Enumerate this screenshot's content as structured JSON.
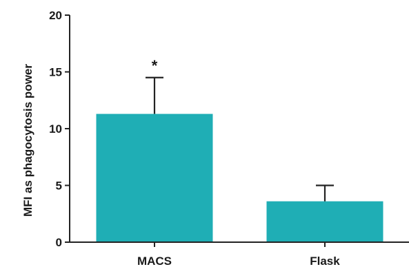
{
  "chart_data": {
    "type": "bar",
    "categories": [
      "MACS",
      "Flask"
    ],
    "values": [
      11.3,
      3.6
    ],
    "errors": [
      3.2,
      1.4
    ],
    "annotations": [
      "*",
      ""
    ],
    "title": "",
    "xlabel": "",
    "ylabel": "MFI as phagocytosis power",
    "ylim": [
      0,
      20
    ],
    "yticks": [
      0,
      5,
      10,
      15,
      20
    ],
    "bar_color": "#1faeb5",
    "grid": false,
    "legend": "none"
  }
}
